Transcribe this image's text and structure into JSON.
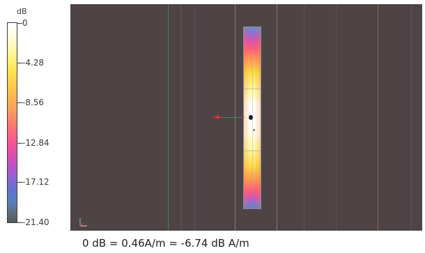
{
  "legend": {
    "unit": "dB",
    "labels": [
      "0",
      "-4.28",
      "-8.56",
      "-12.84",
      "-17.12",
      "-21.40"
    ],
    "colors": {
      "max": "#ffffff",
      "yellow": "#ffe44d",
      "orange": "#ff9c5e",
      "pink": "#f0509b",
      "purple": "#8a63d6",
      "blue": "#5a75cf",
      "min": "#585858"
    }
  },
  "field": {
    "background": "#4e4446"
  },
  "caption": "0 dB = 0.46A/m = -6.74 dB A/m"
}
